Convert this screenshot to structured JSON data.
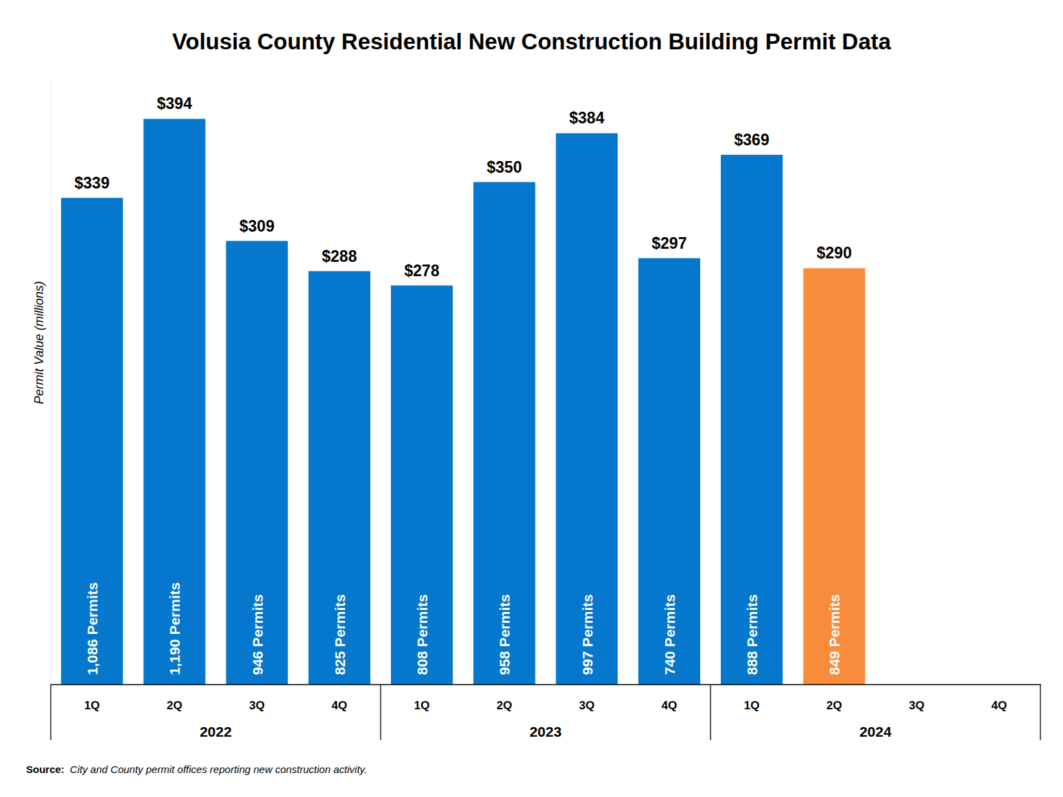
{
  "chart_data": {
    "type": "bar",
    "title": "Volusia County Residential New Construction Building Permit Data",
    "y_label": "Permit Value (millions)",
    "categories": [
      "1Q",
      "2Q",
      "3Q",
      "4Q",
      "1Q",
      "2Q",
      "3Q",
      "4Q",
      "1Q",
      "2Q",
      "3Q",
      "4Q"
    ],
    "years": [
      "2022",
      "2023",
      "2024"
    ],
    "values": [
      339,
      394,
      309,
      288,
      278,
      350,
      384,
      297,
      369,
      290,
      null,
      null
    ],
    "value_labels": [
      "$339",
      "$394",
      "$309",
      "$288",
      "$278",
      "$350",
      "$384",
      "$297",
      "$369",
      "$290",
      null,
      null
    ],
    "permits": [
      1086,
      1190,
      946,
      825,
      808,
      958,
      997,
      740,
      888,
      849,
      null,
      null
    ],
    "permit_labels": [
      "1,086 Permits",
      "1,190 Permits",
      "946 Permits",
      "825 Permits",
      "808 Permits",
      "958 Permits",
      "997 Permits",
      "740 Permits",
      "888 Permits",
      "849 Permits",
      null,
      null
    ],
    "colors": [
      "#0577cc",
      "#0577cc",
      "#0577cc",
      "#0577cc",
      "#0577cc",
      "#0577cc",
      "#0577cc",
      "#0577cc",
      "#0577cc",
      "#f98b3c",
      "#0577cc",
      "#0577cc"
    ],
    "ylim": [
      0,
      420
    ],
    "tick_labels": "x",
    "grid": false,
    "data_labels": true,
    "source_label": "Source:",
    "source": "City and County permit offices reporting new construction activity."
  }
}
